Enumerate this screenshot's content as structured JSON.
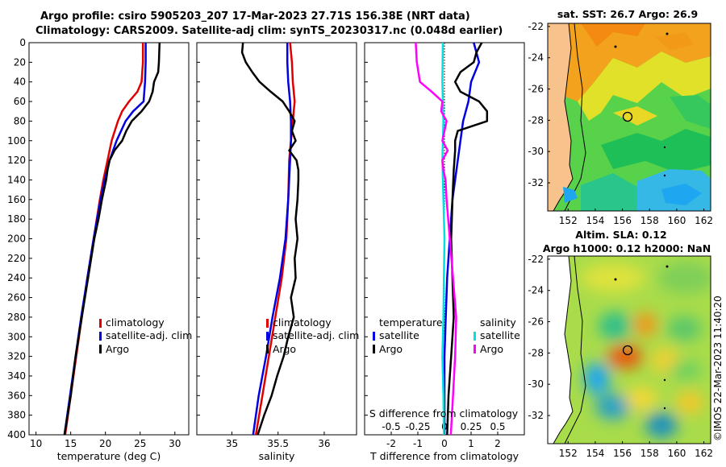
{
  "header": {
    "line1": "Argo profile: csiro 5905203_207 17-Mar-2023 27.71S 156.38E (NRT data)",
    "line2": "Climatology: CARS2009. Satellite-adj clim: synTS_20230317.nc (0.048d earlier)"
  },
  "credit": "©IMOS 22-Mar-2023 11:40:20",
  "colors": {
    "climatology": "#e00000",
    "satellite": "#0000e0",
    "argo": "#000000",
    "sat_salinity": "#00e0e0",
    "sal_diff": "#ff00ff"
  },
  "chart_data": [
    {
      "type": "line",
      "name": "temperature-profile",
      "xlabel": "temperature (deg C)",
      "ylabel": "",
      "xlim": [
        9,
        32
      ],
      "ylim": [
        0,
        400
      ],
      "xticks": [
        "10",
        "15",
        "20",
        "25",
        "30"
      ],
      "yticks": [
        "0",
        "20",
        "40",
        "60",
        "80",
        "100",
        "120",
        "140",
        "160",
        "180",
        "200",
        "220",
        "240",
        "260",
        "280",
        "300",
        "320",
        "340",
        "360",
        "380",
        "400"
      ],
      "legend": [
        "climatology",
        "satellite-adj. clim",
        "Argo"
      ],
      "series": [
        {
          "name": "climatology",
          "depth": [
            0,
            20,
            40,
            50,
            60,
            70,
            80,
            100,
            120,
            140,
            160,
            200,
            240,
            280,
            320,
            360,
            400
          ],
          "values": [
            25.4,
            25.4,
            25.2,
            24.6,
            23.4,
            22.4,
            21.8,
            20.9,
            20.3,
            19.7,
            19.2,
            18.3,
            17.4,
            16.6,
            15.8,
            15.0,
            14.2
          ]
        },
        {
          "name": "satellite-adj. clim",
          "depth": [
            0,
            20,
            40,
            60,
            70,
            80,
            100,
            120,
            140,
            160,
            200,
            240,
            280,
            320,
            360,
            400
          ],
          "values": [
            25.8,
            25.8,
            25.7,
            25.5,
            24.0,
            22.9,
            21.6,
            20.6,
            19.9,
            19.3,
            18.3,
            17.4,
            16.5,
            15.7,
            14.9,
            14.1
          ]
        },
        {
          "name": "Argo",
          "depth": [
            0,
            20,
            30,
            40,
            50,
            60,
            70,
            80,
            90,
            100,
            110,
            120,
            130,
            140,
            160,
            180,
            200,
            240,
            280,
            320,
            360,
            400
          ],
          "values": [
            27.8,
            27.7,
            27.6,
            27.0,
            26.8,
            26.3,
            25.2,
            23.8,
            23.0,
            22.4,
            21.3,
            20.6,
            20.3,
            20.1,
            19.5,
            19.0,
            18.4,
            17.5,
            16.6,
            15.7,
            15.0,
            14.1
          ]
        }
      ]
    },
    {
      "type": "line",
      "name": "salinity-profile",
      "xlabel": "salinity",
      "xlim": [
        34.62,
        36.35
      ],
      "ylim": [
        0,
        400
      ],
      "xticks": [
        "35",
        "35.5",
        "36"
      ],
      "legend": [
        "climatology",
        "satellite-adj. clim",
        "Argo"
      ],
      "series": [
        {
          "name": "climatology",
          "depth": [
            0,
            20,
            40,
            60,
            80,
            100,
            120,
            160,
            200,
            240,
            280,
            320,
            360,
            400
          ],
          "values": [
            35.63,
            35.65,
            35.66,
            35.68,
            35.66,
            35.64,
            35.62,
            35.61,
            35.59,
            35.54,
            35.47,
            35.4,
            35.33,
            35.26
          ]
        },
        {
          "name": "satellite-adj. clim",
          "depth": [
            0,
            20,
            40,
            60,
            80,
            100,
            120,
            160,
            200,
            240,
            280,
            320,
            360,
            400
          ],
          "values": [
            35.6,
            35.6,
            35.61,
            35.63,
            35.64,
            35.64,
            35.63,
            35.61,
            35.58,
            35.52,
            35.44,
            35.37,
            35.29,
            35.23
          ]
        },
        {
          "name": "Argo",
          "depth": [
            0,
            10,
            20,
            30,
            40,
            50,
            60,
            70,
            80,
            90,
            100,
            110,
            120,
            130,
            140,
            160,
            180,
            200,
            220,
            240,
            260,
            280,
            300,
            320,
            340,
            360,
            380,
            400
          ],
          "values": [
            35.12,
            35.11,
            35.15,
            35.22,
            35.3,
            35.42,
            35.55,
            35.62,
            35.68,
            35.65,
            35.69,
            35.62,
            35.7,
            35.72,
            35.72,
            35.71,
            35.69,
            35.71,
            35.68,
            35.69,
            35.64,
            35.67,
            35.61,
            35.56,
            35.49,
            35.43,
            35.35,
            35.28
          ]
        }
      ]
    },
    {
      "type": "line",
      "name": "difference-profile",
      "xlabel": "T difference from climatology",
      "xlabel2": "S difference from climatology",
      "xlim": [
        -3,
        3
      ],
      "ylim": [
        0,
        400
      ],
      "xticks": [
        "-2",
        "-1",
        "0",
        "1",
        "2"
      ],
      "xticks_s": [
        "-0.5",
        "-0.25",
        "0",
        "0.25",
        "0.5"
      ],
      "legend_left_title": "temperature",
      "legend_right_title": "salinity",
      "legend_left": [
        "satellite",
        "Argo"
      ],
      "legend_right": [
        "satellite",
        "Argo"
      ],
      "series": [
        {
          "name": "T satellite",
          "depth": [
            0,
            20,
            40,
            60,
            80,
            100,
            120,
            160,
            200,
            240,
            280,
            320,
            360,
            400
          ],
          "values": [
            1.1,
            1.3,
            1.0,
            0.9,
            0.7,
            0.6,
            0.5,
            0.3,
            0.2,
            0.1,
            0.05,
            0.0,
            0.0,
            0.0
          ]
        },
        {
          "name": "T Argo",
          "depth": [
            0,
            10,
            20,
            30,
            40,
            50,
            60,
            70,
            80,
            90,
            100,
            110,
            130,
            160,
            200,
            240,
            280,
            320,
            360,
            400
          ],
          "values": [
            1.4,
            1.2,
            1.1,
            0.6,
            0.4,
            0.6,
            1.3,
            1.6,
            1.6,
            0.5,
            0.4,
            0.4,
            0.35,
            0.3,
            0.25,
            0.3,
            0.35,
            0.25,
            0.15,
            0.1
          ]
        },
        {
          "name": "S satellite",
          "depth": [
            0,
            40,
            80,
            120,
            160,
            200,
            240,
            280,
            320,
            360,
            400
          ],
          "values": [
            -0.015,
            -0.02,
            -0.01,
            -0.02,
            -0.01,
            0.0,
            -0.005,
            -0.01,
            -0.02,
            -0.01,
            -0.005
          ]
        },
        {
          "name": "S Argo",
          "depth": [
            0,
            20,
            40,
            50,
            60,
            70,
            80,
            100,
            110,
            120,
            130,
            140,
            160,
            200,
            240,
            280,
            320,
            360,
            400
          ],
          "values": [
            -0.27,
            -0.26,
            -0.23,
            -0.12,
            -0.02,
            -0.03,
            0.02,
            -0.02,
            0.03,
            -0.02,
            -0.01,
            0.01,
            0.02,
            0.05,
            0.08,
            0.11,
            0.1,
            0.08,
            0.06
          ]
        }
      ]
    },
    {
      "type": "heatmap",
      "name": "sst-map",
      "title": "sat. SST: 26.7 Argo: 26.9",
      "xlim": [
        150.5,
        162.5
      ],
      "ylim": [
        -33.8,
        -21.8
      ],
      "xticks": [
        "152",
        "154",
        "156",
        "158",
        "160",
        "162"
      ],
      "yticks": [
        "-22",
        "-24",
        "-26",
        "-28",
        "-30",
        "-32"
      ],
      "float_position": {
        "lon": 156.38,
        "lat": -27.71
      }
    },
    {
      "type": "heatmap",
      "name": "sla-map",
      "title": "Altim. SLA: 0.12",
      "title2": "Argo h1000: 0.12 h2000: NaN",
      "xlim": [
        150.5,
        162.5
      ],
      "ylim": [
        -33.8,
        -21.8
      ],
      "xticks": [
        "152",
        "154",
        "156",
        "158",
        "160",
        "162"
      ],
      "yticks": [
        "-22",
        "-24",
        "-26",
        "-28",
        "-30",
        "-32"
      ],
      "float_position": {
        "lon": 156.38,
        "lat": -27.71
      }
    }
  ]
}
